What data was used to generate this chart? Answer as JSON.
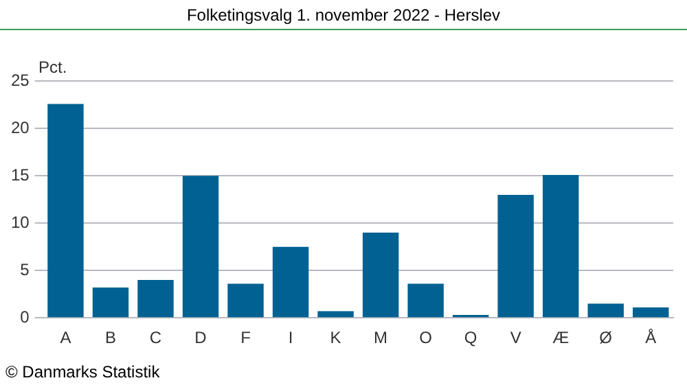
{
  "chart_data": {
    "type": "bar",
    "title": "Folketingsvalg 1. november 2022 - Herslev",
    "ylabel": "Pct.",
    "categories": [
      "A",
      "B",
      "C",
      "D",
      "F",
      "I",
      "K",
      "M",
      "O",
      "Q",
      "V",
      "Æ",
      "Ø",
      "Å"
    ],
    "values": [
      22.6,
      3.2,
      4.0,
      15.0,
      3.6,
      7.5,
      0.7,
      9.0,
      3.6,
      0.3,
      13.0,
      15.1,
      1.5,
      1.1
    ],
    "color": "#006192",
    "ylim": [
      0,
      25
    ],
    "yticks": [
      0,
      5,
      10,
      15,
      20,
      25
    ],
    "grid": "y",
    "annotations": [
      "© Danmarks Statistik"
    ]
  }
}
